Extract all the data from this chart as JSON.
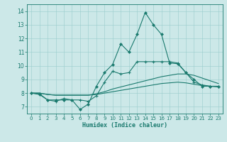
{
  "xlabel": "Humidex (Indice chaleur)",
  "bg_color": "#cce8e8",
  "grid_color": "#99cccc",
  "line_color": "#1a7a6e",
  "xlim": [
    -0.5,
    23.5
  ],
  "ylim": [
    6.5,
    14.5
  ],
  "xticks": [
    0,
    1,
    2,
    3,
    4,
    5,
    6,
    7,
    8,
    9,
    10,
    11,
    12,
    13,
    14,
    15,
    16,
    17,
    18,
    19,
    20,
    21,
    22,
    23
  ],
  "yticks": [
    7,
    8,
    9,
    10,
    11,
    12,
    13,
    14
  ],
  "series1": {
    "x": [
      0,
      1,
      2,
      3,
      4,
      5,
      6,
      7,
      8,
      9,
      10,
      11,
      12,
      13,
      14,
      15,
      16,
      17,
      18,
      19,
      20,
      21,
      22,
      23
    ],
    "y": [
      8.0,
      7.9,
      7.5,
      7.5,
      7.5,
      7.5,
      6.8,
      7.2,
      8.5,
      9.5,
      10.1,
      11.6,
      11.0,
      12.3,
      13.9,
      13.0,
      12.3,
      10.2,
      10.15,
      9.5,
      9.0,
      8.5,
      8.5,
      8.5
    ]
  },
  "series2": {
    "x": [
      0,
      1,
      2,
      3,
      4,
      5,
      6,
      7,
      8,
      9,
      10,
      11,
      12,
      13,
      14,
      15,
      16,
      17,
      18,
      19,
      20,
      21,
      22,
      23
    ],
    "y": [
      8.0,
      7.95,
      7.5,
      7.4,
      7.6,
      7.5,
      7.5,
      7.4,
      7.8,
      8.8,
      9.6,
      9.4,
      9.5,
      10.3,
      10.3,
      10.3,
      10.3,
      10.3,
      10.2,
      9.5,
      8.8,
      8.6,
      8.5,
      8.5
    ],
    "marker_x": [
      0,
      1,
      2,
      3,
      5,
      6,
      7,
      8,
      9,
      10,
      11,
      12,
      13,
      14,
      15,
      16,
      17,
      18,
      19,
      20,
      21,
      22,
      23
    ]
  },
  "series3": {
    "x": [
      0,
      1,
      2,
      3,
      4,
      5,
      6,
      7,
      8,
      9,
      10,
      11,
      12,
      13,
      14,
      15,
      16,
      17,
      18,
      19,
      20,
      21,
      22,
      23
    ],
    "y": [
      8.0,
      8.0,
      7.9,
      7.85,
      7.85,
      7.85,
      7.85,
      7.85,
      7.95,
      8.1,
      8.3,
      8.45,
      8.6,
      8.75,
      8.9,
      9.05,
      9.2,
      9.3,
      9.4,
      9.4,
      9.3,
      9.1,
      8.9,
      8.7
    ]
  },
  "series4": {
    "x": [
      0,
      1,
      2,
      3,
      4,
      5,
      6,
      7,
      8,
      9,
      10,
      11,
      12,
      13,
      14,
      15,
      16,
      17,
      18,
      19,
      20,
      21,
      22,
      23
    ],
    "y": [
      8.0,
      8.0,
      7.9,
      7.85,
      7.85,
      7.85,
      7.85,
      7.85,
      7.9,
      8.0,
      8.1,
      8.2,
      8.3,
      8.4,
      8.5,
      8.6,
      8.7,
      8.75,
      8.8,
      8.75,
      8.65,
      8.55,
      8.5,
      8.45
    ]
  }
}
